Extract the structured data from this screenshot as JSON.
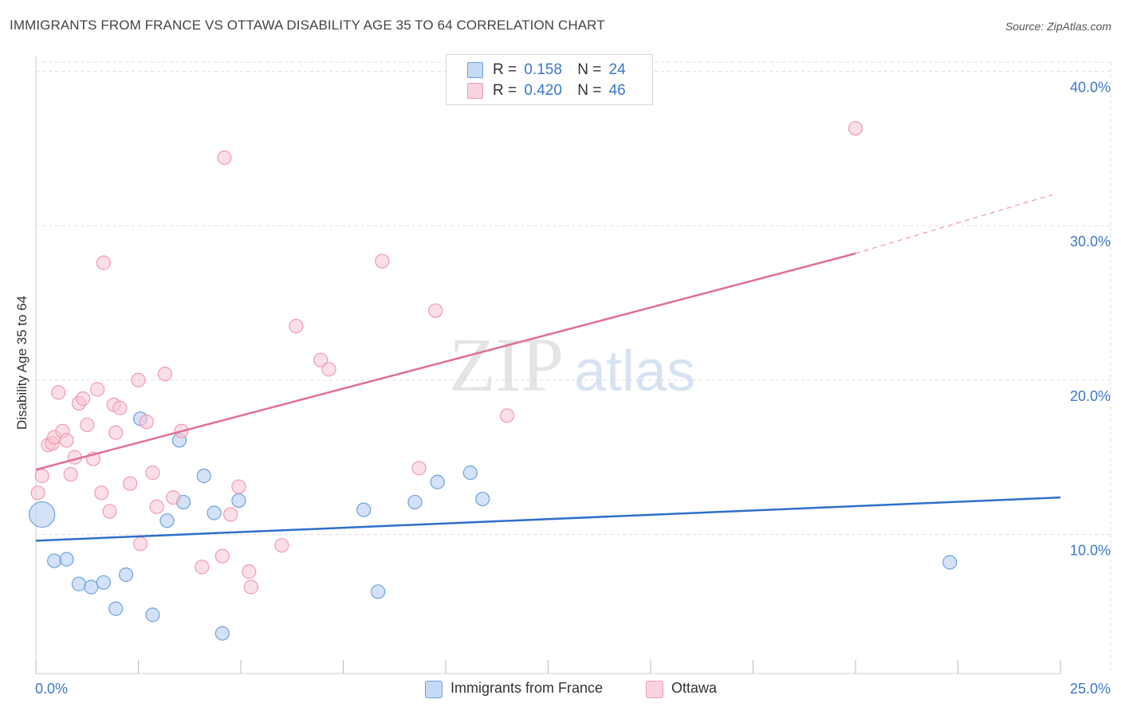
{
  "chart_data": {
    "type": "scatter",
    "title": "IMMIGRANTS FROM FRANCE VS OTTAWA DISABILITY AGE 35 TO 64 CORRELATION CHART",
    "source": "Source: ZipAtlas.com",
    "watermark": {
      "zip": "ZIP",
      "atlas": "atlas"
    },
    "xlabel": "",
    "ylabel": "Disability Age 35 to 64",
    "xlim": [
      0,
      25
    ],
    "ylim": [
      1,
      41
    ],
    "x_tick_labels": [
      "0.0%",
      "25.0%"
    ],
    "y_ticks": [
      10,
      20,
      30,
      40
    ],
    "y_tick_labels": [
      "10.0%",
      "20.0%",
      "30.0%",
      "40.0%"
    ],
    "grid": true,
    "legend": {
      "position": "top-center",
      "entries": [
        {
          "r_label": "R =",
          "r_value": "0.158",
          "n_label": "N =",
          "n_value": "24"
        },
        {
          "r_label": "R =",
          "r_value": "0.420",
          "n_label": "N =",
          "n_value": "46"
        }
      ]
    },
    "series": [
      {
        "name": "Immigrants from France",
        "color": "#6fa0dc",
        "fill": "#aecbf0",
        "trend_color": "#2f6fcb",
        "trend": {
          "x": [
            0,
            25
          ],
          "y": [
            9.6,
            12.4
          ]
        },
        "points": [
          {
            "x": 0.15,
            "y": 11.3,
            "big": true
          },
          {
            "x": 0.45,
            "y": 8.3
          },
          {
            "x": 0.75,
            "y": 8.4
          },
          {
            "x": 1.05,
            "y": 6.8
          },
          {
            "x": 1.35,
            "y": 6.6
          },
          {
            "x": 1.65,
            "y": 6.9
          },
          {
            "x": 1.95,
            "y": 5.2
          },
          {
            "x": 2.2,
            "y": 7.4
          },
          {
            "x": 2.55,
            "y": 17.5
          },
          {
            "x": 2.85,
            "y": 4.8
          },
          {
            "x": 3.2,
            "y": 10.9
          },
          {
            "x": 3.5,
            "y": 16.1
          },
          {
            "x": 3.6,
            "y": 12.1
          },
          {
            "x": 4.1,
            "y": 13.8
          },
          {
            "x": 4.35,
            "y": 11.4
          },
          {
            "x": 4.55,
            "y": 3.6
          },
          {
            "x": 4.95,
            "y": 12.2
          },
          {
            "x": 8.0,
            "y": 11.6
          },
          {
            "x": 8.35,
            "y": 6.3
          },
          {
            "x": 9.25,
            "y": 12.1
          },
          {
            "x": 9.8,
            "y": 13.4
          },
          {
            "x": 10.6,
            "y": 14.0
          },
          {
            "x": 10.9,
            "y": 12.3
          },
          {
            "x": 22.3,
            "y": 8.2
          }
        ]
      },
      {
        "name": "Ottawa",
        "color": "#f09ab2",
        "fill": "#f8c4d3",
        "trend_color": "#e07095",
        "trend": {
          "x": [
            0,
            20
          ],
          "y": [
            14.2,
            28.2
          ]
        },
        "trend_dashed": {
          "x": [
            20,
            24.8
          ],
          "y": [
            28.2,
            32.0
          ]
        },
        "points": [
          {
            "x": 0.05,
            "y": 12.7
          },
          {
            "x": 0.15,
            "y": 13.8
          },
          {
            "x": 0.3,
            "y": 15.8
          },
          {
            "x": 0.4,
            "y": 15.9
          },
          {
            "x": 0.45,
            "y": 16.3
          },
          {
            "x": 0.55,
            "y": 19.2
          },
          {
            "x": 0.65,
            "y": 16.7
          },
          {
            "x": 0.75,
            "y": 16.1
          },
          {
            "x": 0.85,
            "y": 13.9
          },
          {
            "x": 0.95,
            "y": 15.0
          },
          {
            "x": 1.05,
            "y": 18.5
          },
          {
            "x": 1.15,
            "y": 18.8
          },
          {
            "x": 1.25,
            "y": 17.1
          },
          {
            "x": 1.4,
            "y": 14.9
          },
          {
            "x": 1.5,
            "y": 19.4
          },
          {
            "x": 1.6,
            "y": 12.7
          },
          {
            "x": 1.65,
            "y": 27.6
          },
          {
            "x": 1.8,
            "y": 11.5
          },
          {
            "x": 1.9,
            "y": 18.4
          },
          {
            "x": 1.95,
            "y": 16.6
          },
          {
            "x": 2.05,
            "y": 18.2
          },
          {
            "x": 2.3,
            "y": 13.3
          },
          {
            "x": 2.5,
            "y": 20.0
          },
          {
            "x": 2.55,
            "y": 9.4
          },
          {
            "x": 2.7,
            "y": 17.3
          },
          {
            "x": 2.85,
            "y": 14.0
          },
          {
            "x": 2.95,
            "y": 11.8
          },
          {
            "x": 3.15,
            "y": 20.4
          },
          {
            "x": 3.35,
            "y": 12.4
          },
          {
            "x": 3.55,
            "y": 16.7
          },
          {
            "x": 4.05,
            "y": 7.9
          },
          {
            "x": 4.55,
            "y": 8.6
          },
          {
            "x": 4.6,
            "y": 34.4
          },
          {
            "x": 4.75,
            "y": 11.3
          },
          {
            "x": 4.95,
            "y": 13.1
          },
          {
            "x": 5.2,
            "y": 7.6
          },
          {
            "x": 5.25,
            "y": 6.6
          },
          {
            "x": 6.0,
            "y": 9.3
          },
          {
            "x": 6.35,
            "y": 23.5
          },
          {
            "x": 6.95,
            "y": 21.3
          },
          {
            "x": 7.15,
            "y": 20.7
          },
          {
            "x": 8.45,
            "y": 27.7
          },
          {
            "x": 9.35,
            "y": 14.3
          },
          {
            "x": 9.75,
            "y": 24.5
          },
          {
            "x": 11.5,
            "y": 17.7
          },
          {
            "x": 20.0,
            "y": 36.3
          }
        ]
      }
    ]
  }
}
